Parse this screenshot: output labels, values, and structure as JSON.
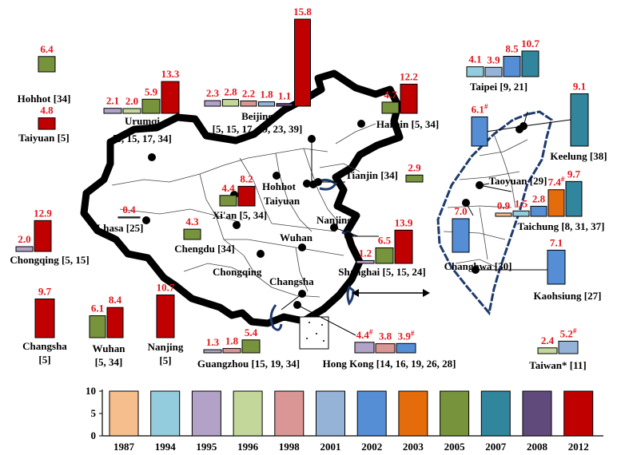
{
  "legend": {
    "years": [
      "1987",
      "1994",
      "1995",
      "1996",
      "1998",
      "2001",
      "2002",
      "2003",
      "2005",
      "2007",
      "2008",
      "2012"
    ],
    "colors": [
      "#f5be8c",
      "#93cddd",
      "#b3a2c7",
      "#c4d79b",
      "#d99694",
      "#95b3d7",
      "#558ed5",
      "#e46c0a",
      "#77933c",
      "#31859c",
      "#604a7b",
      "#c00000"
    ],
    "y_ticks": [
      "0",
      "5",
      "10"
    ]
  },
  "cities": [
    {
      "name": "Hohhot [34]",
      "years": [
        "2005"
      ],
      "values": [
        "6.4"
      ]
    },
    {
      "name": "Taiyuan [5]",
      "years": [
        "2012"
      ],
      "values": [
        "4.8"
      ]
    },
    {
      "name": "Urumqi",
      "refs": "[5, 15, 17, 34]",
      "years": [
        "1995",
        "1996",
        "2005",
        "2012"
      ],
      "values": [
        "2.1",
        "2.0",
        "5.9",
        "13.3"
      ]
    },
    {
      "name": "Beijing",
      "refs": "[5, 15, 17, 19, 23, 39]",
      "years": [
        "1995",
        "1996",
        "1998",
        "2001",
        "2008",
        "2012"
      ],
      "values": [
        "2.3",
        "2.8",
        "2.2",
        "1.8",
        "1.1",
        "15.8"
      ]
    },
    {
      "name": "Harbin [5, 34]",
      "years": [
        "2005",
        "2012"
      ],
      "values": [
        "4.7",
        "12.2"
      ]
    },
    {
      "name": "Chongqing [5, 15]",
      "years": [
        "1995",
        "2012"
      ],
      "values": [
        "2.0",
        "12.9"
      ]
    },
    {
      "name": "Lhasa [25]",
      "years": [
        "2001"
      ],
      "values": [
        "0.4"
      ]
    },
    {
      "name": "Xi'an [5, 34]",
      "years": [
        "2005",
        "2012"
      ],
      "values": [
        "4.4",
        "8.2"
      ]
    },
    {
      "name": "Chengdu [34]",
      "years": [
        "2005"
      ],
      "values": [
        "4.3"
      ]
    },
    {
      "name": "Tianjin [34]",
      "years": [
        "2005"
      ],
      "values": [
        "2.9"
      ]
    },
    {
      "name": "Shanghai [5, 15, 24]",
      "years": [
        "1995",
        "2005",
        "2012"
      ],
      "values": [
        "1.2",
        "6.5",
        "13.9"
      ]
    },
    {
      "name": "Changsha",
      "refs": "[5]",
      "years": [
        "2012"
      ],
      "values": [
        "9.7"
      ]
    },
    {
      "name": "Wuhan",
      "refs": "[5, 34]",
      "years": [
        "2005",
        "2012"
      ],
      "values": [
        "6.1",
        "8.4"
      ]
    },
    {
      "name": "Nanjing",
      "refs": "[5]",
      "years": [
        "2012"
      ],
      "values": [
        "10.7"
      ]
    },
    {
      "name": "Guangzhou [15, 19, 34]",
      "years": [
        "1995",
        "1998",
        "2005"
      ],
      "values": [
        "1.3",
        "1.8",
        "5.4"
      ]
    },
    {
      "name": "Hong Kong [14, 16, 19, 26, 28]",
      "years": [
        "1995",
        "1998",
        "2002"
      ],
      "values": [
        "4.4#",
        "3.8",
        "3.9#"
      ]
    },
    {
      "name": "Taipei [9, 21]",
      "years": [
        "1994",
        "2001",
        "2002",
        "2007"
      ],
      "values": [
        "4.1",
        "3.9",
        "8.5",
        "10.7"
      ]
    },
    {
      "name": "Keelung [38]",
      "years": [
        "2007"
      ],
      "values": [
        "9.1"
      ]
    },
    {
      "name": "Taoyuan [29]",
      "years": [
        "2002"
      ],
      "values": [
        "6.1#"
      ]
    },
    {
      "name": "Taichung [8, 31, 37]",
      "years": [
        "1987",
        "1994",
        "2002",
        "2003",
        "2007"
      ],
      "values": [
        "0.9",
        "1.5",
        "2.8",
        "7.4#",
        "9.7"
      ]
    },
    {
      "name": "Changhwa [30]",
      "years": [
        "2002"
      ],
      "values": [
        "7.0"
      ]
    },
    {
      "name": "Kaohsiung [27]",
      "years": [
        "2002"
      ],
      "values": [
        "7.1"
      ]
    },
    {
      "name": "Taiwan* [11]",
      "years": [
        "1996",
        "2001"
      ],
      "values": [
        "2.4",
        "5.2#"
      ]
    }
  ],
  "map_labels": [
    "Hohhot",
    "Taiyuan",
    "Beijing",
    "Harbin",
    "Tianjin",
    "Nanjing",
    "Wuhan",
    "Xi'an",
    "Chengdu",
    "Chongqing",
    "Changsha",
    "Lhasa",
    "Urumqi",
    "Shanghai",
    "Guangzhou",
    "Hong Kong"
  ]
}
